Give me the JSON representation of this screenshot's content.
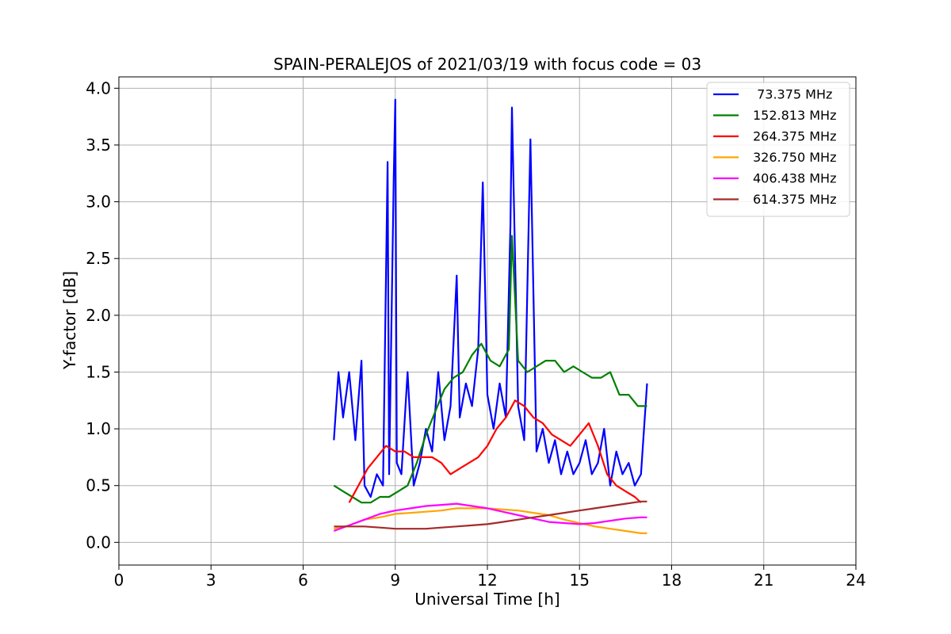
{
  "chart_data": {
    "type": "line",
    "title": "SPAIN-PERALEJOS of 2021/03/19 with focus code = 03",
    "xlabel": "Universal Time [h]",
    "ylabel": "Y-factor [dB]",
    "xlim": [
      0,
      24
    ],
    "ylim": [
      -0.2,
      4.1
    ],
    "xticks": [
      "0",
      "3",
      "6",
      "9",
      "12",
      "15",
      "18",
      "21",
      "24"
    ],
    "xtick_values": [
      0,
      3,
      6,
      9,
      12,
      15,
      18,
      21,
      24
    ],
    "yticks": [
      "0.0",
      "0.5",
      "1.0",
      "1.5",
      "2.0",
      "2.5",
      "3.0",
      "3.5",
      "4.0"
    ],
    "ytick_values": [
      0,
      0.5,
      1.0,
      1.5,
      2.0,
      2.5,
      3.0,
      3.5,
      4.0
    ],
    "grid": true,
    "legend_position": "top-right",
    "series": [
      {
        "name": " 73.375 MHz",
        "color": "#0000ff",
        "x": [
          7.0,
          7.15,
          7.3,
          7.5,
          7.7,
          7.9,
          8.0,
          8.2,
          8.4,
          8.6,
          8.75,
          8.8,
          8.95,
          9.0,
          9.05,
          9.2,
          9.4,
          9.6,
          9.8,
          10.0,
          10.2,
          10.4,
          10.6,
          10.8,
          11.0,
          11.1,
          11.3,
          11.5,
          11.7,
          11.85,
          12.0,
          12.2,
          12.4,
          12.6,
          12.75,
          12.8,
          13.0,
          13.2,
          13.4,
          13.6,
          13.8,
          14.0,
          14.2,
          14.4,
          14.6,
          14.8,
          15.0,
          15.2,
          15.4,
          15.6,
          15.8,
          16.0,
          16.2,
          16.4,
          16.6,
          16.8,
          17.0,
          17.2
        ],
        "values": [
          0.9,
          1.5,
          1.1,
          1.5,
          0.9,
          1.6,
          0.5,
          0.4,
          0.6,
          0.5,
          3.35,
          0.6,
          3.2,
          3.9,
          0.7,
          0.6,
          1.5,
          0.5,
          0.7,
          1.0,
          0.8,
          1.5,
          0.9,
          1.2,
          2.35,
          1.1,
          1.4,
          1.2,
          1.7,
          3.17,
          1.3,
          1.0,
          1.4,
          1.1,
          2.8,
          3.83,
          1.2,
          0.9,
          3.55,
          0.8,
          1.0,
          0.7,
          0.9,
          0.6,
          0.8,
          0.6,
          0.7,
          0.9,
          0.6,
          0.7,
          1.0,
          0.5,
          0.8,
          0.6,
          0.7,
          0.5,
          0.6,
          1.4
        ]
      },
      {
        "name": "152.813 MHz",
        "color": "#008000",
        "x": [
          7.0,
          7.3,
          7.6,
          7.9,
          8.2,
          8.5,
          8.8,
          9.1,
          9.4,
          9.7,
          10.0,
          10.3,
          10.6,
          10.9,
          11.2,
          11.5,
          11.8,
          12.1,
          12.4,
          12.7,
          12.8,
          13.0,
          13.3,
          13.6,
          13.9,
          14.2,
          14.5,
          14.8,
          15.1,
          15.4,
          15.7,
          16.0,
          16.3,
          16.6,
          16.9,
          17.2
        ],
        "values": [
          0.5,
          0.45,
          0.4,
          0.35,
          0.35,
          0.4,
          0.4,
          0.45,
          0.5,
          0.7,
          0.95,
          1.15,
          1.35,
          1.45,
          1.5,
          1.65,
          1.75,
          1.6,
          1.55,
          1.7,
          2.7,
          1.6,
          1.5,
          1.55,
          1.6,
          1.6,
          1.5,
          1.55,
          1.5,
          1.45,
          1.45,
          1.5,
          1.3,
          1.3,
          1.2,
          1.2
        ]
      },
      {
        "name": "264.375 MHz",
        "color": "#ff0000",
        "x": [
          7.5,
          7.8,
          8.1,
          8.4,
          8.7,
          9.0,
          9.3,
          9.6,
          9.9,
          10.2,
          10.5,
          10.8,
          11.1,
          11.4,
          11.7,
          12.0,
          12.3,
          12.6,
          12.9,
          13.2,
          13.5,
          13.8,
          14.1,
          14.4,
          14.7,
          15.0,
          15.3,
          15.6,
          15.9,
          16.2,
          16.5,
          16.8,
          17.0
        ],
        "values": [
          0.35,
          0.5,
          0.65,
          0.75,
          0.85,
          0.8,
          0.8,
          0.75,
          0.75,
          0.75,
          0.7,
          0.6,
          0.65,
          0.7,
          0.75,
          0.85,
          1.0,
          1.1,
          1.25,
          1.2,
          1.1,
          1.05,
          0.95,
          0.9,
          0.85,
          0.95,
          1.05,
          0.85,
          0.6,
          0.5,
          0.45,
          0.4,
          0.35
        ]
      },
      {
        "name": "326.750 MHz",
        "color": "#ffa500",
        "x": [
          7.0,
          7.5,
          8.0,
          8.5,
          9.0,
          9.5,
          10.0,
          10.5,
          11.0,
          11.5,
          12.0,
          12.5,
          13.0,
          13.5,
          14.0,
          14.5,
          15.0,
          15.5,
          16.0,
          16.5,
          17.0,
          17.2
        ],
        "values": [
          0.12,
          0.15,
          0.2,
          0.22,
          0.25,
          0.26,
          0.27,
          0.28,
          0.3,
          0.3,
          0.3,
          0.29,
          0.28,
          0.26,
          0.24,
          0.2,
          0.17,
          0.14,
          0.12,
          0.1,
          0.08,
          0.08
        ]
      },
      {
        "name": "406.438 MHz",
        "color": "#ff00ff",
        "x": [
          7.0,
          7.5,
          8.0,
          8.5,
          9.0,
          9.5,
          10.0,
          10.5,
          11.0,
          11.5,
          12.0,
          12.5,
          13.0,
          13.5,
          14.0,
          14.5,
          15.0,
          15.5,
          16.0,
          16.5,
          17.0,
          17.2
        ],
        "values": [
          0.1,
          0.15,
          0.2,
          0.25,
          0.28,
          0.3,
          0.32,
          0.33,
          0.34,
          0.32,
          0.3,
          0.27,
          0.24,
          0.21,
          0.18,
          0.17,
          0.16,
          0.17,
          0.19,
          0.21,
          0.22,
          0.22
        ]
      },
      {
        "name": "614.375 MHz",
        "color": "#a52a2a",
        "x": [
          7.0,
          7.5,
          8.0,
          8.5,
          9.0,
          9.5,
          10.0,
          10.5,
          11.0,
          11.5,
          12.0,
          12.5,
          13.0,
          13.5,
          14.0,
          14.5,
          15.0,
          15.5,
          16.0,
          16.5,
          17.0,
          17.2
        ],
        "values": [
          0.14,
          0.14,
          0.14,
          0.13,
          0.12,
          0.12,
          0.12,
          0.13,
          0.14,
          0.15,
          0.16,
          0.18,
          0.2,
          0.22,
          0.24,
          0.26,
          0.28,
          0.3,
          0.32,
          0.34,
          0.36,
          0.36
        ]
      }
    ]
  }
}
